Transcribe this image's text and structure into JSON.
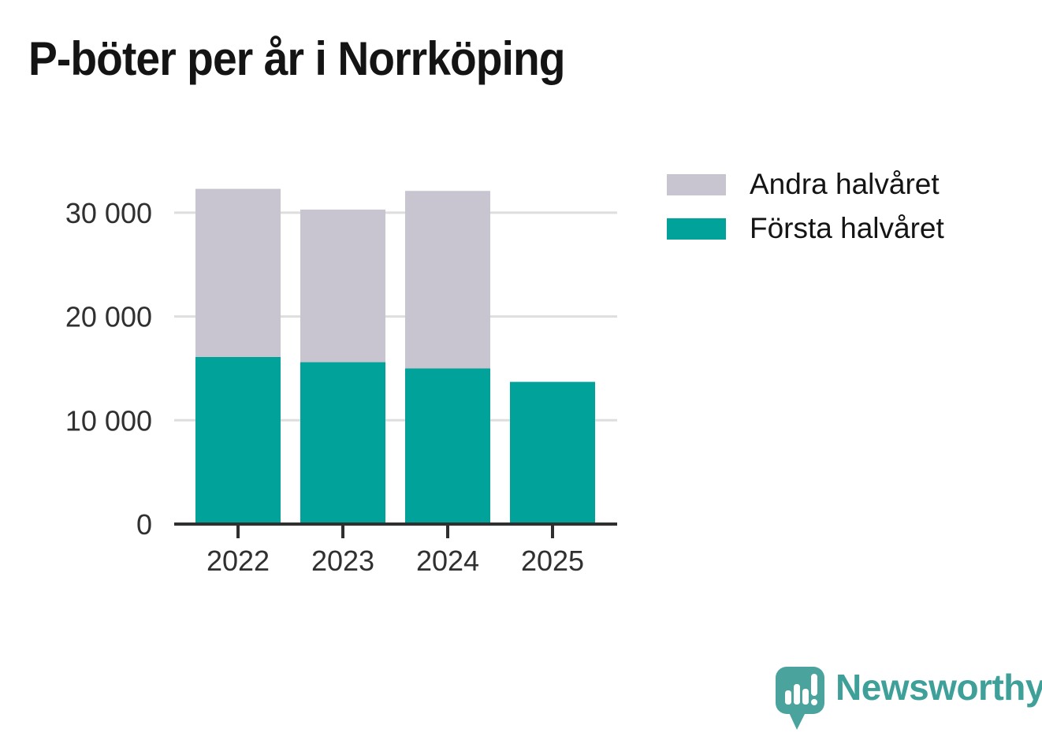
{
  "branding": {
    "name": "Newsworthy"
  },
  "chart_data": {
    "type": "bar",
    "stacked": true,
    "title": "P-böter per år i Norrköping",
    "xlabel": "",
    "ylabel": "",
    "categories": [
      "2022",
      "2023",
      "2024",
      "2025"
    ],
    "series": [
      {
        "name": "Första halvåret",
        "color": "#00A29A",
        "values": [
          16100,
          15600,
          15000,
          13700
        ]
      },
      {
        "name": "Andra halvåret",
        "color": "#C8C5D0",
        "values": [
          16200,
          14700,
          17100,
          0
        ]
      }
    ],
    "totals": [
      32300,
      30300,
      32100,
      13700
    ],
    "ylim": [
      0,
      35300
    ],
    "yticks": [
      0,
      10000,
      20000,
      30000
    ],
    "ytick_labels": [
      "0",
      "10 000",
      "20 000",
      "30 000"
    ],
    "grid": true,
    "gridline_color": "#dedede",
    "axis_color": "#2f2f2f",
    "tick_label_color": "#303030",
    "legend_position": "right",
    "legend_order": [
      1,
      0
    ]
  }
}
